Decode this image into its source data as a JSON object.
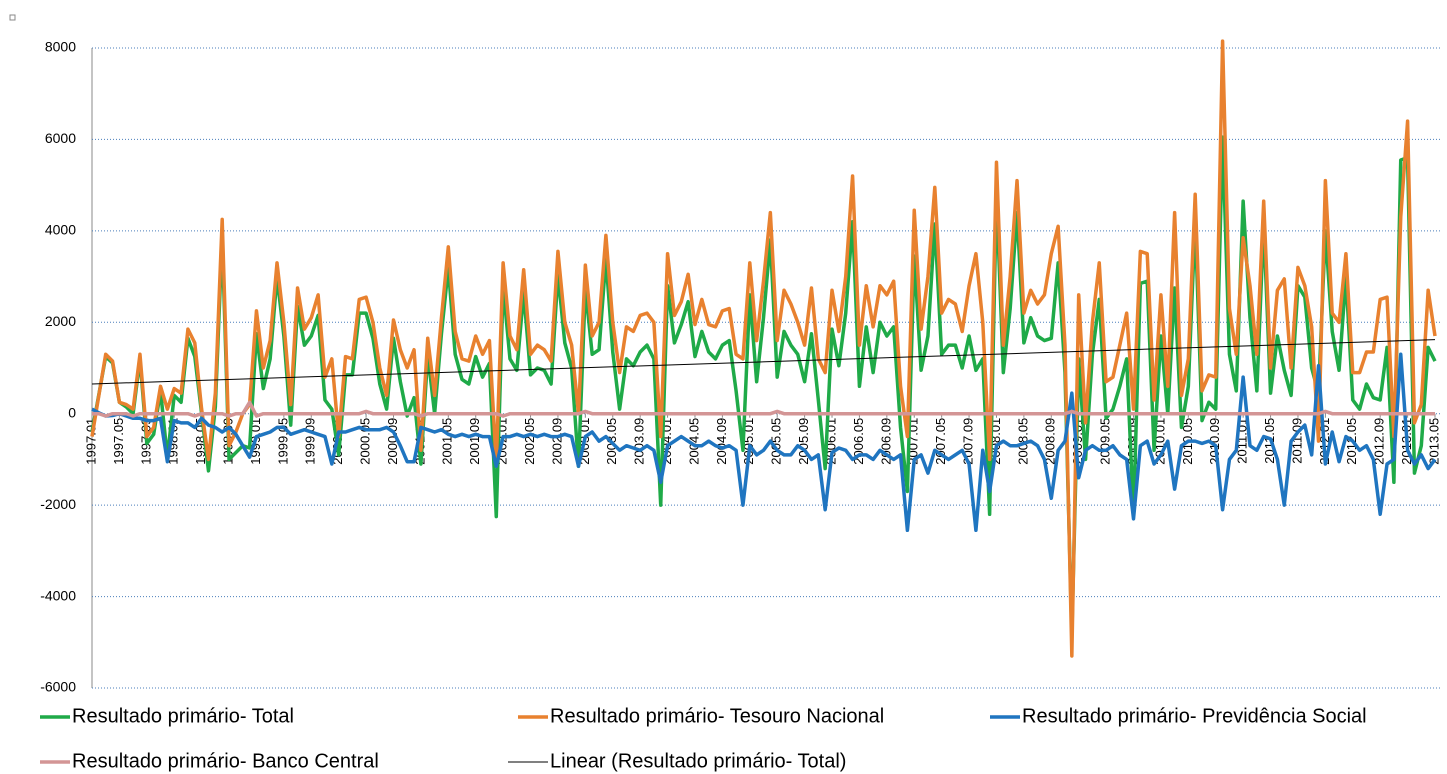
{
  "chart_data": {
    "type": "line",
    "categories": [
      "1997.01",
      null,
      null,
      null,
      "1997.05",
      null,
      null,
      null,
      "1997.09",
      null,
      null,
      null,
      "1998.01",
      null,
      null,
      null,
      "1998.05",
      null,
      null,
      null,
      "1998.09",
      null,
      null,
      null,
      "1999.01",
      null,
      null,
      null,
      "1999.05",
      null,
      null,
      null,
      "1999.09",
      null,
      null,
      null,
      "2000.01",
      null,
      null,
      null,
      "2000.05",
      null,
      null,
      null,
      "2000.09",
      null,
      null,
      null,
      "2001.01",
      null,
      null,
      null,
      "2001.05",
      null,
      null,
      null,
      "2001.09",
      null,
      null,
      null,
      "2002.01",
      null,
      null,
      null,
      "2002.05",
      null,
      null,
      null,
      "2002.09",
      null,
      null,
      null,
      "2003.01",
      null,
      null,
      null,
      "2003.05",
      null,
      null,
      null,
      "2003.09",
      null,
      null,
      null,
      "2004.01",
      null,
      null,
      null,
      "2004.05",
      null,
      null,
      null,
      "2004.09",
      null,
      null,
      null,
      "2005.01",
      null,
      null,
      null,
      "2005.05",
      null,
      null,
      null,
      "2005.09",
      null,
      null,
      null,
      "2006.01",
      null,
      null,
      null,
      "2006.05",
      null,
      null,
      null,
      "2006.09",
      null,
      null,
      null,
      "2007.01",
      null,
      null,
      null,
      "2007.05",
      null,
      null,
      null,
      "2007.09",
      null,
      null,
      null,
      "2008.01",
      null,
      null,
      null,
      "2008.05",
      null,
      null,
      null,
      "2008.09",
      null,
      null,
      null,
      "2009.01",
      null,
      null,
      null,
      "2009.05",
      null,
      null,
      null,
      "2009.09",
      null,
      null,
      null,
      "2010.01",
      null,
      null,
      null,
      "2010.05",
      null,
      null,
      null,
      "2010.09",
      null,
      null,
      null,
      "2011.01",
      null,
      null,
      null,
      "2011.05",
      null,
      null,
      null,
      "2011.09",
      null,
      null,
      null,
      "2012.01",
      null,
      null,
      null,
      "2012.05",
      null,
      null,
      null,
      "2012.09",
      null,
      null,
      null,
      "2013.01",
      null,
      null,
      null,
      "2013.05"
    ],
    "series": [
      {
        "name": "Resultado primário- Total",
        "color": "#1faa48",
        "width": 3.5,
        "values": [
          -400,
          420,
          1250,
          1110,
          250,
          150,
          0,
          1200,
          -650,
          -450,
          500,
          -950,
          400,
          250,
          1650,
          1250,
          0,
          -1250,
          150,
          3850,
          -1000,
          -850,
          -700,
          -750,
          1750,
          550,
          1200,
          3000,
          1700,
          -250,
          2350,
          1500,
          1700,
          2150,
          300,
          100,
          -900,
          850,
          850,
          2200,
          2200,
          1650,
          650,
          100,
          1650,
          700,
          -50,
          350,
          -1100,
          1300,
          0,
          1750,
          3200,
          1300,
          750,
          650,
          1250,
          800,
          1100,
          -2250,
          2800,
          1200,
          950,
          2650,
          850,
          1000,
          950,
          650,
          3050,
          1550,
          1000,
          -1150,
          2750,
          1300,
          1400,
          3400,
          1350,
          100,
          1200,
          1050,
          1350,
          1500,
          1200,
          -2000,
          2800,
          1550,
          1950,
          2450,
          1250,
          1800,
          1350,
          1200,
          1500,
          1600,
          500,
          -800,
          2600,
          700,
          2100,
          3800,
          800,
          1800,
          1500,
          1300,
          700,
          1750,
          300,
          -1200,
          1850,
          1050,
          2200,
          4200,
          600,
          1900,
          900,
          2000,
          1700,
          1900,
          -300,
          -1700,
          3450,
          950,
          1700,
          4150,
          1300,
          1500,
          1500,
          1000,
          1700,
          950,
          1200,
          -2200,
          4800,
          900,
          2300,
          4400,
          1550,
          2100,
          1700,
          1600,
          1650,
          3300,
          900,
          -4850,
          1200,
          -1000,
          1300,
          2500,
          -100,
          100,
          600,
          1200,
          -2200,
          2850,
          2900,
          -800,
          1700,
          0,
          2750,
          -300,
          600,
          4200,
          -150,
          250,
          100,
          6050,
          1300,
          500,
          4650,
          2100,
          500,
          4150,
          450,
          1700,
          950,
          400,
          2800,
          2550,
          1000,
          450,
          4000,
          1800,
          950,
          3000,
          300,
          100,
          650,
          350,
          300,
          1450,
          -1500,
          5550,
          5600,
          -1300,
          -700,
          1450,
          1150
        ]
      },
      {
        "name": "Resultado primário- Tesouro Nacional",
        "color": "#e8812f",
        "width": 3.5,
        "values": [
          -500,
          400,
          1300,
          1150,
          250,
          200,
          100,
          1300,
          -500,
          -300,
          600,
          100,
          550,
          450,
          1850,
          1550,
          100,
          -1000,
          450,
          4250,
          -700,
          -400,
          0,
          200,
          2250,
          1000,
          1600,
          3300,
          2000,
          200,
          2750,
          1850,
          2100,
          2600,
          800,
          1200,
          -500,
          1250,
          1200,
          2500,
          2550,
          2000,
          1000,
          400,
          2050,
          1400,
          1000,
          1400,
          -800,
          1650,
          400,
          2100,
          3650,
          1800,
          1200,
          1150,
          1700,
          1300,
          1600,
          -1100,
          3300,
          1700,
          1400,
          3150,
          1300,
          1500,
          1400,
          1150,
          3550,
          2000,
          1500,
          0,
          3250,
          1700,
          2000,
          3900,
          2000,
          900,
          1900,
          1800,
          2150,
          2200,
          2000,
          -500,
          3500,
          2150,
          2450,
          3050,
          1950,
          2500,
          1950,
          1900,
          2250,
          2300,
          1300,
          1200,
          3300,
          1600,
          2900,
          4400,
          1600,
          2700,
          2400,
          2000,
          1500,
          2750,
          1200,
          900,
          2700,
          1800,
          3000,
          5200,
          1500,
          2800,
          1900,
          2800,
          2600,
          2900,
          600,
          -500,
          4450,
          1850,
          3000,
          4950,
          2200,
          2500,
          2400,
          1800,
          2800,
          3500,
          2000,
          -1000,
          5500,
          1500,
          3000,
          5100,
          2200,
          2700,
          2400,
          2600,
          3500,
          4100,
          1500,
          -5300,
          2600,
          -200,
          2000,
          3300,
          700,
          800,
          1500,
          2200,
          100,
          3550,
          3500,
          300,
          2600,
          600,
          4400,
          400,
          1200,
          4800,
          500,
          850,
          800,
          8150,
          2300,
          1300,
          3850,
          2800,
          1300,
          4650,
          1000,
          2700,
          2950,
          1000,
          3200,
          2800,
          1900,
          -600,
          5100,
          2200,
          2000,
          3500,
          900,
          900,
          1350,
          1350,
          2500,
          2550,
          -500,
          4300,
          6400,
          -200,
          200,
          2700,
          1700
        ]
      },
      {
        "name": "Resultado primário- Previdência Social",
        "color": "#1f75c0",
        "width": 3.5,
        "values": [
          100,
          20,
          -50,
          -40,
          0,
          -50,
          -100,
          -100,
          -150,
          -150,
          -100,
          -1050,
          -150,
          -200,
          -200,
          -300,
          -100,
          -250,
          -300,
          -400,
          -300,
          -450,
          -700,
          -950,
          -500,
          -450,
          -400,
          -300,
          -300,
          -450,
          -400,
          -350,
          -400,
          -450,
          -500,
          -1100,
          -400,
          -400,
          -350,
          -300,
          -350,
          -350,
          -350,
          -300,
          -400,
          -700,
          -1050,
          -1050,
          -300,
          -350,
          -400,
          -350,
          -450,
          -500,
          -450,
          -500,
          -450,
          -500,
          -500,
          -1150,
          -500,
          -500,
          -450,
          -500,
          -450,
          -500,
          -450,
          -500,
          -500,
          -450,
          -500,
          -1150,
          -500,
          -400,
          -600,
          -500,
          -650,
          -800,
          -700,
          -750,
          -800,
          -700,
          -800,
          -1500,
          -700,
          -600,
          -500,
          -600,
          -700,
          -700,
          -600,
          -700,
          -750,
          -700,
          -800,
          -2000,
          -700,
          -900,
          -800,
          -600,
          -800,
          -900,
          -900,
          -700,
          -800,
          -1000,
          -900,
          -2100,
          -850,
          -750,
          -800,
          -1000,
          -900,
          -900,
          -1000,
          -800,
          -900,
          -1000,
          -900,
          -2550,
          -1000,
          -900,
          -1300,
          -800,
          -900,
          -1000,
          -900,
          -800,
          -1100,
          -2550,
          -800,
          -1700,
          -700,
          -600,
          -700,
          -700,
          -650,
          -600,
          -700,
          -1000,
          -1850,
          -800,
          -600,
          450,
          -1400,
          -800,
          -700,
          -800,
          -800,
          -700,
          -900,
          -1000,
          -2300,
          -700,
          -600,
          -1100,
          -900,
          -600,
          -1650,
          -700,
          -600,
          -600,
          -650,
          -600,
          -700,
          -2100,
          -1000,
          -800,
          800,
          -700,
          -800,
          -500,
          -550,
          -1000,
          -2000,
          -600,
          -400,
          -250,
          -900,
          1050,
          -1100,
          -400,
          -1050,
          -500,
          -600,
          -800,
          -700,
          -1000,
          -2200,
          -1100,
          -1000,
          1300,
          -800,
          -1100,
          -900,
          -1200,
          -1000
        ]
      },
      {
        "name": "Resultado primário- Banco Central",
        "color": "#d39595",
        "width": 3.5,
        "values": [
          0,
          0,
          -50,
          0,
          0,
          0,
          -50,
          0,
          0,
          0,
          0,
          0,
          0,
          0,
          0,
          -50,
          0,
          0,
          0,
          0,
          -50,
          0,
          0,
          250,
          -50,
          0,
          0,
          0,
          0,
          0,
          0,
          0,
          0,
          0,
          0,
          0,
          0,
          0,
          0,
          0,
          50,
          0,
          0,
          0,
          0,
          0,
          0,
          0,
          -50,
          0,
          0,
          0,
          0,
          0,
          0,
          0,
          0,
          0,
          0,
          0,
          -50,
          0,
          0,
          0,
          0,
          0,
          0,
          0,
          0,
          0,
          0,
          0,
          50,
          0,
          0,
          0,
          0,
          0,
          0,
          0,
          0,
          0,
          0,
          0,
          0,
          0,
          0,
          0,
          0,
          0,
          0,
          0,
          0,
          0,
          0,
          0,
          0,
          0,
          0,
          0,
          50,
          0,
          0,
          0,
          0,
          0,
          0,
          0,
          0,
          0,
          0,
          0,
          0,
          0,
          0,
          0,
          0,
          0,
          0,
          0,
          0,
          0,
          0,
          0,
          0,
          0,
          0,
          0,
          0,
          0,
          0,
          0,
          0,
          0,
          0,
          0,
          0,
          0,
          0,
          0,
          0,
          0,
          0,
          50,
          0,
          0,
          0,
          0,
          0,
          0,
          0,
          0,
          0,
          0,
          0,
          0,
          0,
          0,
          0,
          0,
          0,
          0,
          0,
          0,
          0,
          0,
          0,
          0,
          0,
          0,
          0,
          0,
          0,
          0,
          0,
          0,
          0,
          0,
          0,
          0,
          50,
          0,
          0,
          0,
          0,
          0,
          0,
          0,
          0,
          0,
          0,
          0,
          0,
          0,
          0,
          0,
          0
        ]
      },
      {
        "name": "Linear (Resultado primário- Total)",
        "color": "#000000",
        "width": 1,
        "x": [
          "1997.01",
          "2013.05"
        ],
        "values": [
          650,
          1620
        ]
      }
    ],
    "ylim": [
      -6000,
      8000
    ],
    "yticks": [
      -6000,
      -4000,
      -2000,
      0,
      2000,
      4000,
      6000,
      8000
    ],
    "grid": true,
    "legend": "bottom"
  }
}
